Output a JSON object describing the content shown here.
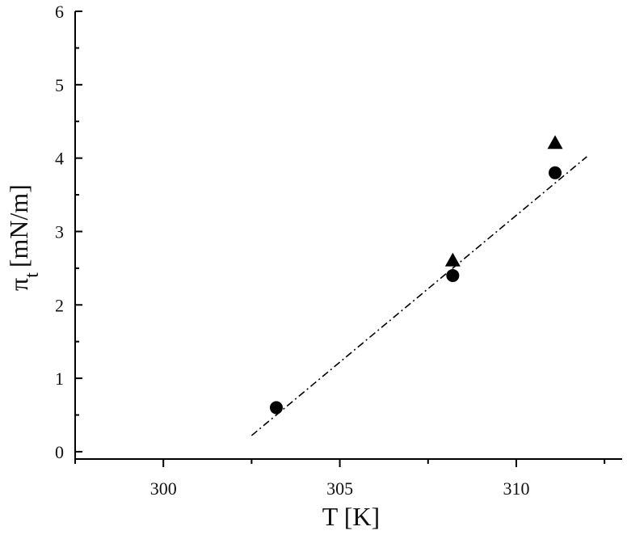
{
  "chart_data": {
    "type": "scatter",
    "title": "",
    "xlabel": "T [K]",
    "ylabel_symbol": "π",
    "ylabel_subscript": "t",
    "ylabel_units": "[mN/m]",
    "xlim": [
      297.5,
      313.0
    ],
    "ylim": [
      -0.1,
      6.0
    ],
    "x_ticks": [
      300,
      305,
      310
    ],
    "y_ticks": [
      0,
      1,
      2,
      3,
      4,
      5,
      6
    ],
    "grid": false,
    "legend": "none",
    "series": [
      {
        "marker": "circle",
        "color": "#000000",
        "x": [
          303.2,
          308.2,
          311.1
        ],
        "y": [
          0.6,
          2.4,
          3.8
        ]
      },
      {
        "marker": "triangle",
        "color": "#000000",
        "x": [
          308.2,
          311.1
        ],
        "y": [
          2.6,
          4.2
        ]
      }
    ],
    "fit_line": {
      "style": "dash-dot",
      "color": "#000000",
      "x": [
        302.5,
        312.0
      ],
      "y": [
        0.22,
        4.02
      ]
    }
  }
}
